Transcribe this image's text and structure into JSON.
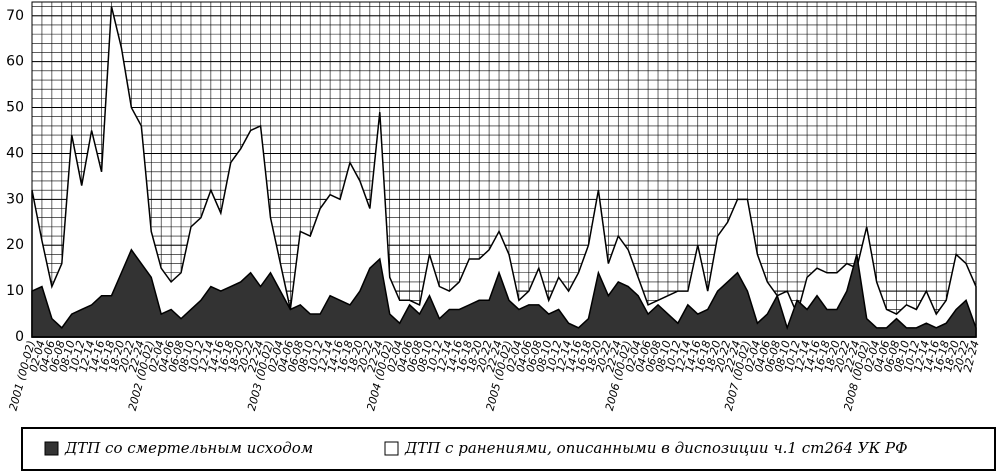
{
  "chart_data": {
    "type": "area",
    "categories": [
      "2001 (00-02)",
      "02-04",
      "04-06",
      "06-08",
      "08-10",
      "10-12",
      "12-14",
      "14-16",
      "16-18",
      "18-20",
      "20-22",
      "22-24",
      "2002 (00-02)",
      "02-04",
      "04-06",
      "06-08",
      "08-10",
      "10-12",
      "12-14",
      "14-16",
      "16-18",
      "18-20",
      "20-22",
      "22-24",
      "2003 (00-02)",
      "02-04",
      "04-06",
      "06-08",
      "08-10",
      "10-12",
      "12-14",
      "14-16",
      "16-18",
      "18-20",
      "20-22",
      "22-24",
      "2004 (00-02)",
      "02-04",
      "04-06",
      "06-08",
      "08-10",
      "10-12",
      "12-14",
      "14-16",
      "16-18",
      "18-20",
      "20-22",
      "22-24",
      "2005 (00-02)",
      "02-04",
      "04-06",
      "06-08",
      "08-10",
      "10-12",
      "12-14",
      "14-16",
      "16-18",
      "18-20",
      "20-22",
      "22-24",
      "2006 (00-02)",
      "02-04",
      "04-06",
      "06-08",
      "08-10",
      "10-12",
      "12-14",
      "14-16",
      "16-18",
      "18-20",
      "20-22",
      "22-24",
      "2007 (00-02)",
      "02-04",
      "04-06",
      "06-08",
      "08-10",
      "10-12",
      "12-14",
      "14-16",
      "16-18",
      "18-20",
      "20-22",
      "22-24",
      "2008 (00-02)",
      "02-04",
      "04-06",
      "06-08",
      "08-10",
      "10-12",
      "12-14",
      "14-16",
      "16-18",
      "18-20",
      "20-22",
      "22-24"
    ],
    "series": [
      {
        "name": "ДТП с ранениями, описанными в диспозиции ч.1 ст264 УК РФ",
        "color": "#ffffff",
        "values": [
          32,
          21,
          11,
          16,
          44,
          33,
          45,
          36,
          72,
          63,
          50,
          46,
          23,
          15,
          12,
          14,
          24,
          26,
          32,
          27,
          38,
          41,
          45,
          46,
          26,
          16,
          6,
          23,
          22,
          28,
          31,
          30,
          38,
          34,
          28,
          49,
          13,
          8,
          8,
          7,
          18,
          11,
          10,
          12,
          17,
          17,
          19,
          23,
          18,
          8,
          10,
          15,
          8,
          13,
          10,
          14,
          20,
          32,
          16,
          22,
          19,
          13,
          7,
          8,
          9,
          10,
          10,
          20,
          10,
          22,
          25,
          30,
          30,
          18,
          12,
          9,
          10,
          5,
          13,
          15,
          14,
          14,
          16,
          15,
          24,
          12,
          6,
          5,
          7,
          6,
          10,
          5,
          8,
          18,
          16,
          11
        ]
      },
      {
        "name": "ДТП со смертельным исходом",
        "color": "#333333",
        "values": [
          10,
          11,
          4,
          2,
          5,
          6,
          7,
          9,
          9,
          14,
          19,
          16,
          13,
          5,
          6,
          4,
          6,
          8,
          11,
          10,
          11,
          12,
          14,
          11,
          14,
          10,
          6,
          7,
          5,
          5,
          9,
          8,
          7,
          10,
          15,
          17,
          5,
          3,
          7,
          5,
          9,
          4,
          6,
          6,
          7,
          8,
          8,
          14,
          8,
          6,
          7,
          7,
          5,
          6,
          3,
          2,
          4,
          14,
          9,
          12,
          11,
          9,
          5,
          7,
          5,
          3,
          7,
          5,
          6,
          10,
          12,
          14,
          10,
          3,
          5,
          9,
          2,
          8,
          6,
          9,
          6,
          6,
          10,
          18,
          4,
          2,
          2,
          4,
          2,
          2,
          3,
          2,
          3,
          6,
          8,
          2
        ]
      }
    ],
    "ylim": [
      0,
      73
    ],
    "yticks": [
      0,
      10,
      20,
      30,
      40,
      50,
      60,
      70
    ],
    "grid": true,
    "legend": "bottom"
  }
}
